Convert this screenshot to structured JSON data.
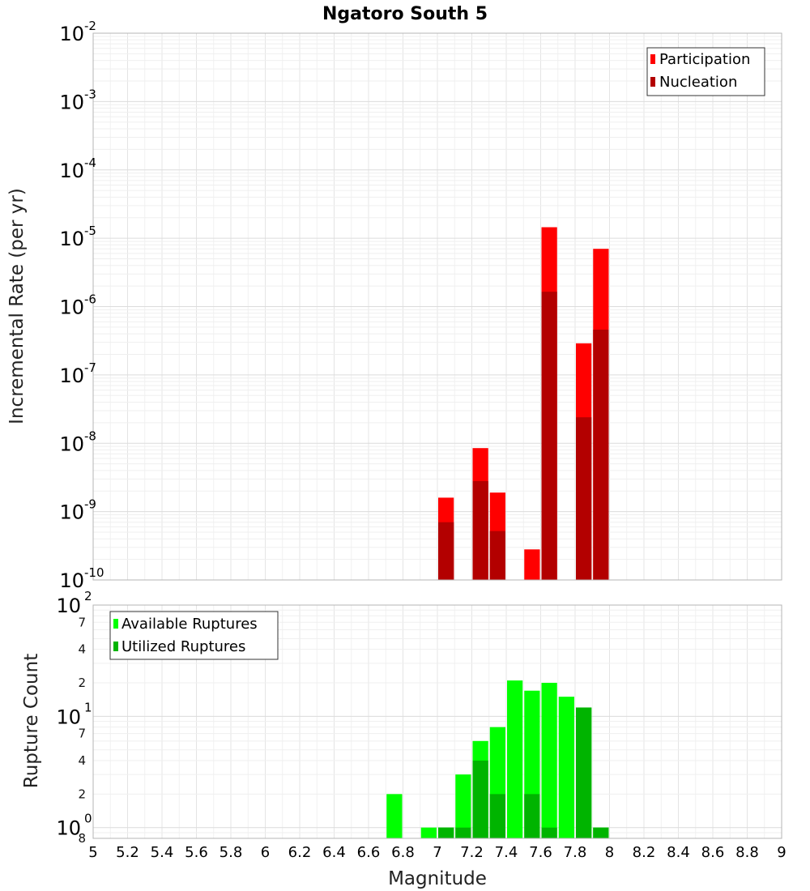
{
  "chart_data": [
    {
      "type": "bar",
      "title": "Ngatoro South 5",
      "xlabel": "Magnitude",
      "ylabel": "Incremental Rate (per yr)",
      "yscale": "log",
      "ylim": [
        1e-10,
        0.01
      ],
      "xlim": [
        5,
        9
      ],
      "bin_width": 0.1,
      "x_tick_labels": [
        "5",
        "5.2",
        "5.4",
        "5.6",
        "5.8",
        "6",
        "6.2",
        "6.4",
        "6.6",
        "6.8",
        "7",
        "7.2",
        "7.4",
        "7.6",
        "7.8",
        "8",
        "8.2",
        "8.4",
        "8.6",
        "8.8",
        "9"
      ],
      "y_tick_labels": [
        {
          "base": "10",
          "exp": "-2"
        },
        {
          "base": "10",
          "exp": "-3"
        },
        {
          "base": "10",
          "exp": "-4"
        },
        {
          "base": "10",
          "exp": "-5"
        },
        {
          "base": "10",
          "exp": "-6"
        },
        {
          "base": "10",
          "exp": "-7"
        },
        {
          "base": "10",
          "exp": "-8"
        },
        {
          "base": "10",
          "exp": "-9"
        },
        {
          "base": "10",
          "exp": "-10"
        }
      ],
      "legend": {
        "position": "top-right",
        "entries": [
          "Participation",
          "Nucleation"
        ]
      },
      "series": [
        {
          "name": "Participation",
          "color": "#ff0000",
          "points": [
            {
              "x": 7.05,
              "y": 1.6e-09
            },
            {
              "x": 7.25,
              "y": 8.5e-09
            },
            {
              "x": 7.35,
              "y": 1.9e-09
            },
            {
              "x": 7.55,
              "y": 2.8e-10
            },
            {
              "x": 7.65,
              "y": 1.45e-05
            },
            {
              "x": 7.85,
              "y": 2.9e-07
            },
            {
              "x": 7.95,
              "y": 7e-06
            }
          ]
        },
        {
          "name": "Nucleation",
          "color": "#b30000",
          "points": [
            {
              "x": 7.05,
              "y": 7e-10
            },
            {
              "x": 7.25,
              "y": 2.8e-09
            },
            {
              "x": 7.35,
              "y": 5.2e-10
            },
            {
              "x": 7.65,
              "y": 1.65e-06
            },
            {
              "x": 7.85,
              "y": 2.4e-08
            },
            {
              "x": 7.95,
              "y": 4.6e-07
            }
          ]
        }
      ]
    },
    {
      "type": "bar",
      "title": "",
      "xlabel": "Magnitude",
      "ylabel": "Rupture Count",
      "yscale": "log",
      "ylim": [
        0.8,
        100
      ],
      "xlim": [
        5,
        9
      ],
      "bin_width": 0.1,
      "y_tick_labels": [
        {
          "value": 100,
          "base": "10",
          "exp": "2",
          "major": true
        },
        {
          "value": 70,
          "label": "7"
        },
        {
          "value": 40,
          "label": "4"
        },
        {
          "value": 20,
          "label": "2"
        },
        {
          "value": 10,
          "base": "10",
          "exp": "1",
          "major": true
        },
        {
          "value": 7,
          "label": "7"
        },
        {
          "value": 4,
          "label": "4"
        },
        {
          "value": 2,
          "label": "2"
        },
        {
          "value": 1,
          "base": "10",
          "exp": "0",
          "major": true
        },
        {
          "value": 0.8,
          "label": "8"
        }
      ],
      "legend": {
        "position": "top-left",
        "entries": [
          "Available Ruptures",
          "Utilized Ruptures"
        ]
      },
      "series": [
        {
          "name": "Available Ruptures",
          "color": "#00ff00",
          "points": [
            {
              "x": 6.75,
              "y": 2
            },
            {
              "x": 6.95,
              "y": 1
            },
            {
              "x": 7.05,
              "y": 1
            },
            {
              "x": 7.15,
              "y": 3
            },
            {
              "x": 7.25,
              "y": 6
            },
            {
              "x": 7.35,
              "y": 8
            },
            {
              "x": 7.45,
              "y": 21
            },
            {
              "x": 7.55,
              "y": 17
            },
            {
              "x": 7.65,
              "y": 20
            },
            {
              "x": 7.75,
              "y": 15
            },
            {
              "x": 7.85,
              "y": 12
            },
            {
              "x": 7.95,
              "y": 1
            }
          ]
        },
        {
          "name": "Utilized Ruptures",
          "color": "#00b400",
          "points": [
            {
              "x": 7.05,
              "y": 1
            },
            {
              "x": 7.15,
              "y": 1
            },
            {
              "x": 7.25,
              "y": 4
            },
            {
              "x": 7.35,
              "y": 2
            },
            {
              "x": 7.55,
              "y": 2
            },
            {
              "x": 7.65,
              "y": 1
            },
            {
              "x": 7.85,
              "y": 12
            },
            {
              "x": 7.95,
              "y": 1
            }
          ]
        }
      ]
    }
  ]
}
